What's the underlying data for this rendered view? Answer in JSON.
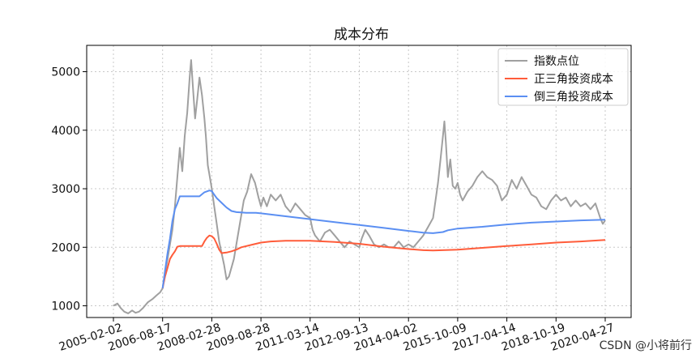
{
  "chart_data": {
    "type": "line",
    "title": "成本分布",
    "xlabel": "",
    "ylabel": "",
    "x_tick_labels": [
      "2005-02-02",
      "2006-08-17",
      "2008-02-28",
      "2009-08-28",
      "2011-03-14",
      "2012-09-13",
      "2014-04-02",
      "2015-10-09",
      "2017-04-14",
      "2018-10-19",
      "2020-04-27"
    ],
    "ylim": [
      800,
      5450
    ],
    "y_ticks": [
      1000,
      2000,
      3000,
      4000,
      5000
    ],
    "x_range": [
      0,
      10
    ],
    "grid": true,
    "legend_position": "top-right",
    "series": [
      {
        "name": "指数点位",
        "color": "#a0a0a0",
        "points": [
          [
            0.0,
            1000
          ],
          [
            0.08,
            1040
          ],
          [
            0.15,
            960
          ],
          [
            0.22,
            900
          ],
          [
            0.3,
            870
          ],
          [
            0.38,
            920
          ],
          [
            0.45,
            880
          ],
          [
            0.52,
            900
          ],
          [
            0.6,
            960
          ],
          [
            0.7,
            1060
          ],
          [
            0.8,
            1120
          ],
          [
            0.88,
            1180
          ],
          [
            0.95,
            1230
          ],
          [
            1.0,
            1300
          ],
          [
            1.05,
            1550
          ],
          [
            1.1,
            1800
          ],
          [
            1.15,
            2050
          ],
          [
            1.2,
            2300
          ],
          [
            1.25,
            2700
          ],
          [
            1.3,
            3200
          ],
          [
            1.35,
            3700
          ],
          [
            1.4,
            3300
          ],
          [
            1.45,
            3900
          ],
          [
            1.5,
            4300
          ],
          [
            1.55,
            4900
          ],
          [
            1.58,
            5200
          ],
          [
            1.62,
            4700
          ],
          [
            1.66,
            4200
          ],
          [
            1.7,
            4500
          ],
          [
            1.75,
            4900
          ],
          [
            1.8,
            4600
          ],
          [
            1.85,
            4200
          ],
          [
            1.88,
            3900
          ],
          [
            1.92,
            3400
          ],
          [
            1.96,
            3200
          ],
          [
            2.0,
            3000
          ],
          [
            2.05,
            2700
          ],
          [
            2.1,
            2400
          ],
          [
            2.15,
            2100
          ],
          [
            2.2,
            1900
          ],
          [
            2.25,
            1700
          ],
          [
            2.3,
            1450
          ],
          [
            2.35,
            1500
          ],
          [
            2.45,
            1800
          ],
          [
            2.55,
            2300
          ],
          [
            2.65,
            2800
          ],
          [
            2.72,
            2950
          ],
          [
            2.8,
            3250
          ],
          [
            2.88,
            3100
          ],
          [
            2.95,
            2850
          ],
          [
            3.0,
            2700
          ],
          [
            3.05,
            2850
          ],
          [
            3.12,
            2700
          ],
          [
            3.2,
            2900
          ],
          [
            3.3,
            2800
          ],
          [
            3.4,
            2900
          ],
          [
            3.5,
            2700
          ],
          [
            3.6,
            2600
          ],
          [
            3.7,
            2750
          ],
          [
            3.8,
            2650
          ],
          [
            3.9,
            2550
          ],
          [
            4.0,
            2500
          ],
          [
            4.05,
            2300
          ],
          [
            4.1,
            2200
          ],
          [
            4.2,
            2100
          ],
          [
            4.3,
            2250
          ],
          [
            4.4,
            2300
          ],
          [
            4.5,
            2200
          ],
          [
            4.6,
            2100
          ],
          [
            4.7,
            2000
          ],
          [
            4.8,
            2100
          ],
          [
            4.9,
            2050
          ],
          [
            5.0,
            2000
          ],
          [
            5.05,
            2150
          ],
          [
            5.12,
            2300
          ],
          [
            5.2,
            2200
          ],
          [
            5.3,
            2050
          ],
          [
            5.4,
            2000
          ],
          [
            5.5,
            2050
          ],
          [
            5.6,
            2000
          ],
          [
            5.7,
            2000
          ],
          [
            5.8,
            2100
          ],
          [
            5.9,
            2000
          ],
          [
            6.0,
            2050
          ],
          [
            6.1,
            2000
          ],
          [
            6.2,
            2100
          ],
          [
            6.3,
            2200
          ],
          [
            6.4,
            2350
          ],
          [
            6.5,
            2500
          ],
          [
            6.6,
            3100
          ],
          [
            6.65,
            3500
          ],
          [
            6.7,
            3900
          ],
          [
            6.73,
            4150
          ],
          [
            6.76,
            3800
          ],
          [
            6.8,
            3200
          ],
          [
            6.85,
            3500
          ],
          [
            6.9,
            3050
          ],
          [
            6.95,
            3000
          ],
          [
            7.0,
            3100
          ],
          [
            7.05,
            2900
          ],
          [
            7.1,
            2800
          ],
          [
            7.2,
            2950
          ],
          [
            7.3,
            3050
          ],
          [
            7.4,
            3200
          ],
          [
            7.5,
            3300
          ],
          [
            7.6,
            3200
          ],
          [
            7.7,
            3150
          ],
          [
            7.8,
            3050
          ],
          [
            7.9,
            2800
          ],
          [
            8.0,
            2900
          ],
          [
            8.1,
            3150
          ],
          [
            8.2,
            3000
          ],
          [
            8.3,
            3200
          ],
          [
            8.4,
            3050
          ],
          [
            8.5,
            2900
          ],
          [
            8.6,
            2850
          ],
          [
            8.7,
            2700
          ],
          [
            8.8,
            2650
          ],
          [
            8.9,
            2800
          ],
          [
            9.0,
            2900
          ],
          [
            9.1,
            2800
          ],
          [
            9.2,
            2850
          ],
          [
            9.3,
            2700
          ],
          [
            9.4,
            2800
          ],
          [
            9.5,
            2700
          ],
          [
            9.6,
            2750
          ],
          [
            9.7,
            2650
          ],
          [
            9.8,
            2750
          ],
          [
            9.9,
            2500
          ],
          [
            9.95,
            2400
          ],
          [
            10.0,
            2460
          ]
        ]
      },
      {
        "name": "正三角投资成本",
        "color": "#ff5c3a",
        "points": [
          [
            1.0,
            1300
          ],
          [
            1.05,
            1500
          ],
          [
            1.1,
            1650
          ],
          [
            1.15,
            1800
          ],
          [
            1.2,
            1870
          ],
          [
            1.25,
            1930
          ],
          [
            1.3,
            2010
          ],
          [
            1.35,
            2020
          ],
          [
            1.4,
            2020
          ],
          [
            1.5,
            2020
          ],
          [
            1.6,
            2020
          ],
          [
            1.7,
            2020
          ],
          [
            1.8,
            2020
          ],
          [
            1.85,
            2100
          ],
          [
            1.9,
            2160
          ],
          [
            1.95,
            2200
          ],
          [
            2.0,
            2190
          ],
          [
            2.05,
            2150
          ],
          [
            2.1,
            2060
          ],
          [
            2.15,
            1960
          ],
          [
            2.2,
            1900
          ],
          [
            2.3,
            1910
          ],
          [
            2.4,
            1930
          ],
          [
            2.5,
            1960
          ],
          [
            2.6,
            2000
          ],
          [
            2.8,
            2040
          ],
          [
            3.0,
            2080
          ],
          [
            3.2,
            2100
          ],
          [
            3.5,
            2110
          ],
          [
            4.0,
            2110
          ],
          [
            4.5,
            2090
          ],
          [
            5.0,
            2060
          ],
          [
            5.5,
            2010
          ],
          [
            6.0,
            1970
          ],
          [
            6.3,
            1950
          ],
          [
            6.5,
            1945
          ],
          [
            7.0,
            1960
          ],
          [
            7.5,
            1990
          ],
          [
            8.0,
            2020
          ],
          [
            8.5,
            2050
          ],
          [
            9.0,
            2080
          ],
          [
            9.5,
            2100
          ],
          [
            10.0,
            2125
          ]
        ]
      },
      {
        "name": "倒三角投资成本",
        "color": "#5b8ff2",
        "points": [
          [
            1.0,
            1300
          ],
          [
            1.05,
            1600
          ],
          [
            1.1,
            1900
          ],
          [
            1.15,
            2150
          ],
          [
            1.2,
            2450
          ],
          [
            1.25,
            2650
          ],
          [
            1.3,
            2750
          ],
          [
            1.35,
            2870
          ],
          [
            1.5,
            2870
          ],
          [
            1.65,
            2870
          ],
          [
            1.75,
            2870
          ],
          [
            1.85,
            2940
          ],
          [
            1.95,
            2970
          ],
          [
            2.0,
            2960
          ],
          [
            2.05,
            2900
          ],
          [
            2.1,
            2840
          ],
          [
            2.2,
            2760
          ],
          [
            2.3,
            2680
          ],
          [
            2.4,
            2620
          ],
          [
            2.5,
            2600
          ],
          [
            2.7,
            2590
          ],
          [
            2.9,
            2590
          ],
          [
            3.0,
            2580
          ],
          [
            3.5,
            2530
          ],
          [
            4.0,
            2480
          ],
          [
            4.5,
            2430
          ],
          [
            5.0,
            2380
          ],
          [
            5.5,
            2330
          ],
          [
            6.0,
            2280
          ],
          [
            6.3,
            2250
          ],
          [
            6.5,
            2240
          ],
          [
            6.7,
            2260
          ],
          [
            6.8,
            2290
          ],
          [
            7.0,
            2320
          ],
          [
            7.5,
            2350
          ],
          [
            8.0,
            2390
          ],
          [
            8.5,
            2420
          ],
          [
            9.0,
            2440
          ],
          [
            9.5,
            2460
          ],
          [
            10.0,
            2470
          ]
        ]
      }
    ]
  },
  "watermark": "CSDN @小将前行"
}
